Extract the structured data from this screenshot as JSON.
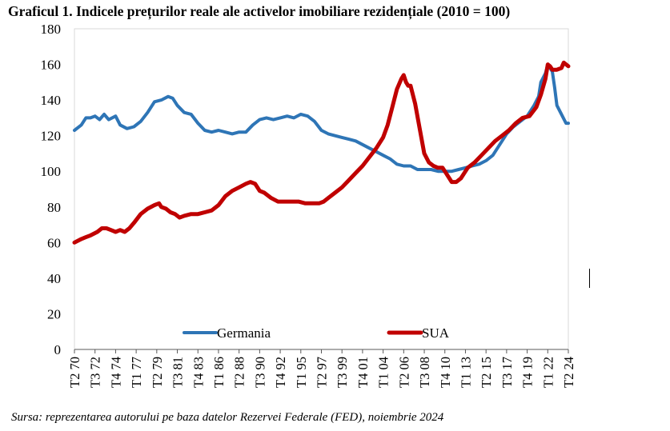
{
  "title": "Graficul 1. Indicele prețurilor reale ale activelor imobiliare rezidențiale (2010 = 100)",
  "source": "Sursa: reprezentarea autorului pe baza datelor Rezervei Federale (FED), noiembrie 2024",
  "chart_data": {
    "type": "line",
    "ylim": [
      0,
      180
    ],
    "yticks": [
      0,
      20,
      40,
      60,
      80,
      100,
      120,
      140,
      160,
      180
    ],
    "xlim": [
      1970.25,
      2024.25
    ],
    "xtick_labels": [
      "T2 70",
      "T3 72",
      "T4 74",
      "T1 77",
      "T2 79",
      "T3 81",
      "T4 83",
      "T1 86",
      "T2 88",
      "T3 90",
      "T4 92",
      "T1 95",
      "T2 97",
      "T3 99",
      "T4 01",
      "T1 04",
      "T2 06",
      "T3 08",
      "T4 10",
      "T1 13",
      "T2 15",
      "T3 17",
      "T4 19",
      "T1 22",
      "T2 24"
    ],
    "xtick_positions": [
      1970.25,
      1972.5,
      1974.75,
      1977.0,
      1979.25,
      1981.5,
      1983.75,
      1986.0,
      1988.25,
      1990.5,
      1992.75,
      1995.0,
      1997.25,
      1999.5,
      2001.75,
      2004.0,
      2006.25,
      2008.5,
      2010.75,
      2013.0,
      2015.25,
      2017.5,
      2019.75,
      2022.0,
      2024.25
    ],
    "grid": false,
    "legend_position": "bottom-center",
    "series": [
      {
        "name": "Germania",
        "color": "#2e75b6",
        "points": [
          [
            1970.25,
            123
          ],
          [
            1971.0,
            126
          ],
          [
            1971.5,
            130
          ],
          [
            1972.0,
            130
          ],
          [
            1972.5,
            131
          ],
          [
            1973.0,
            129
          ],
          [
            1973.5,
            132
          ],
          [
            1974.0,
            129
          ],
          [
            1974.75,
            131
          ],
          [
            1975.25,
            126
          ],
          [
            1976.0,
            124
          ],
          [
            1976.75,
            125
          ],
          [
            1977.5,
            128
          ],
          [
            1978.25,
            133
          ],
          [
            1979.0,
            139
          ],
          [
            1979.75,
            140
          ],
          [
            1980.5,
            142
          ],
          [
            1981.0,
            141
          ],
          [
            1981.5,
            137
          ],
          [
            1982.25,
            133
          ],
          [
            1983.0,
            132
          ],
          [
            1983.75,
            127
          ],
          [
            1984.5,
            123
          ],
          [
            1985.25,
            122
          ],
          [
            1986.0,
            123
          ],
          [
            1986.75,
            122
          ],
          [
            1987.5,
            121
          ],
          [
            1988.25,
            122
          ],
          [
            1989.0,
            122
          ],
          [
            1989.75,
            126
          ],
          [
            1990.5,
            129
          ],
          [
            1991.25,
            130
          ],
          [
            1992.0,
            129
          ],
          [
            1992.75,
            130
          ],
          [
            1993.5,
            131
          ],
          [
            1994.25,
            130
          ],
          [
            1995.0,
            132
          ],
          [
            1995.75,
            131
          ],
          [
            1996.5,
            128
          ],
          [
            1997.25,
            123
          ],
          [
            1998.0,
            121
          ],
          [
            1998.75,
            120
          ],
          [
            1999.5,
            119
          ],
          [
            2000.25,
            118
          ],
          [
            2001.0,
            117
          ],
          [
            2001.75,
            115
          ],
          [
            2002.5,
            113
          ],
          [
            2003.25,
            111
          ],
          [
            2004.0,
            109
          ],
          [
            2004.75,
            107
          ],
          [
            2005.5,
            104
          ],
          [
            2006.25,
            103
          ],
          [
            2007.0,
            103
          ],
          [
            2007.75,
            101
          ],
          [
            2008.5,
            101
          ],
          [
            2009.25,
            101
          ],
          [
            2010.0,
            100
          ],
          [
            2010.75,
            100
          ],
          [
            2011.5,
            100
          ],
          [
            2012.25,
            101
          ],
          [
            2013.0,
            102
          ],
          [
            2013.75,
            103
          ],
          [
            2014.5,
            104
          ],
          [
            2015.25,
            106
          ],
          [
            2016.0,
            109
          ],
          [
            2016.75,
            115
          ],
          [
            2017.5,
            121
          ],
          [
            2018.25,
            125
          ],
          [
            2019.0,
            128
          ],
          [
            2019.75,
            131
          ],
          [
            2020.5,
            137
          ],
          [
            2021.0,
            142
          ],
          [
            2021.25,
            150
          ],
          [
            2021.75,
            155
          ],
          [
            2022.0,
            160
          ],
          [
            2022.5,
            156
          ],
          [
            2022.75,
            147
          ],
          [
            2023.0,
            137
          ],
          [
            2023.5,
            132
          ],
          [
            2024.0,
            127
          ],
          [
            2024.25,
            127
          ]
        ]
      },
      {
        "name": "SUA",
        "color": "#c00000",
        "points": [
          [
            1970.25,
            60
          ],
          [
            1971.0,
            62
          ],
          [
            1971.5,
            63
          ],
          [
            1972.0,
            64
          ],
          [
            1972.75,
            66
          ],
          [
            1973.25,
            68
          ],
          [
            1973.75,
            68
          ],
          [
            1974.25,
            67
          ],
          [
            1974.75,
            66
          ],
          [
            1975.25,
            67
          ],
          [
            1975.75,
            66
          ],
          [
            1976.25,
            68
          ],
          [
            1976.75,
            71
          ],
          [
            1977.5,
            76
          ],
          [
            1978.25,
            79
          ],
          [
            1979.0,
            81
          ],
          [
            1979.5,
            82
          ],
          [
            1979.75,
            80
          ],
          [
            1980.25,
            79
          ],
          [
            1980.75,
            77
          ],
          [
            1981.25,
            76
          ],
          [
            1981.75,
            74
          ],
          [
            1982.25,
            75
          ],
          [
            1983.0,
            76
          ],
          [
            1983.75,
            76
          ],
          [
            1984.5,
            77
          ],
          [
            1985.25,
            78
          ],
          [
            1986.0,
            81
          ],
          [
            1986.75,
            86
          ],
          [
            1987.5,
            89
          ],
          [
            1988.25,
            91
          ],
          [
            1989.0,
            93
          ],
          [
            1989.5,
            94
          ],
          [
            1990.0,
            93
          ],
          [
            1990.5,
            89
          ],
          [
            1991.0,
            88
          ],
          [
            1991.75,
            85
          ],
          [
            1992.5,
            83
          ],
          [
            1993.25,
            83
          ],
          [
            1994.0,
            83
          ],
          [
            1994.75,
            83
          ],
          [
            1995.5,
            82
          ],
          [
            1996.25,
            82
          ],
          [
            1997.0,
            82
          ],
          [
            1997.5,
            83
          ],
          [
            1998.0,
            85
          ],
          [
            1998.75,
            88
          ],
          [
            1999.5,
            91
          ],
          [
            2000.25,
            95
          ],
          [
            2001.0,
            99
          ],
          [
            2001.75,
            103
          ],
          [
            2002.5,
            108
          ],
          [
            2003.25,
            113
          ],
          [
            2004.0,
            119
          ],
          [
            2004.5,
            126
          ],
          [
            2005.0,
            136
          ],
          [
            2005.5,
            146
          ],
          [
            2006.0,
            152
          ],
          [
            2006.25,
            154
          ],
          [
            2006.5,
            150
          ],
          [
            2006.75,
            148
          ],
          [
            2007.0,
            148
          ],
          [
            2007.5,
            138
          ],
          [
            2008.0,
            124
          ],
          [
            2008.5,
            110
          ],
          [
            2009.0,
            105
          ],
          [
            2009.5,
            103
          ],
          [
            2010.0,
            102
          ],
          [
            2010.5,
            102
          ],
          [
            2011.0,
            98
          ],
          [
            2011.5,
            94
          ],
          [
            2012.0,
            94
          ],
          [
            2012.5,
            96
          ],
          [
            2013.25,
            102
          ],
          [
            2014.0,
            105
          ],
          [
            2014.75,
            109
          ],
          [
            2015.5,
            113
          ],
          [
            2016.25,
            117
          ],
          [
            2017.0,
            120
          ],
          [
            2017.75,
            123
          ],
          [
            2018.5,
            127
          ],
          [
            2019.25,
            130
          ],
          [
            2020.0,
            131
          ],
          [
            2020.75,
            136
          ],
          [
            2021.25,
            143
          ],
          [
            2021.75,
            152
          ],
          [
            2022.0,
            160
          ],
          [
            2022.25,
            159
          ],
          [
            2022.5,
            157
          ],
          [
            2023.0,
            157
          ],
          [
            2023.5,
            158
          ],
          [
            2023.75,
            161
          ],
          [
            2024.25,
            159
          ]
        ]
      }
    ]
  }
}
